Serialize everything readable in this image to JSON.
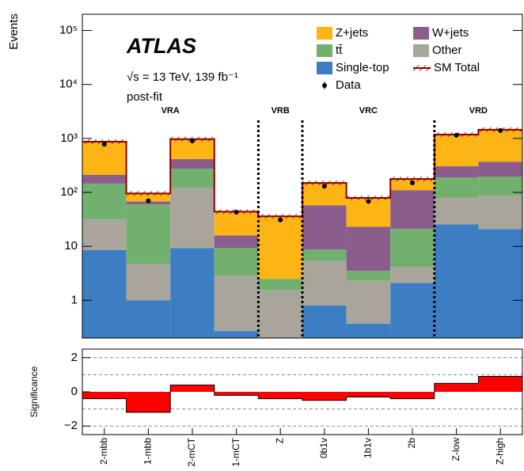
{
  "chart_data": {
    "type": "stacked_histogram",
    "experiment": "ATLAS",
    "energy_label": "√s = 13 TeV, 139 fb⁻¹",
    "fit_label": "post-fit",
    "y_label": "Events",
    "categories": [
      "2-mbb",
      "1-mbb",
      "2-mCT",
      "1-mCT",
      "Z",
      "0b1v",
      "1b1v",
      "2b",
      "Z-low",
      "Z-high"
    ],
    "log_scale": true,
    "ylim": [
      0.2,
      200000
    ],
    "yticks": [
      1,
      10,
      {
        "value": 100,
        "label": "10²"
      },
      {
        "value": 1000,
        "label": "10³"
      },
      {
        "value": 10000,
        "label": "10⁴"
      },
      {
        "value": 100000,
        "label": "10⁵"
      }
    ],
    "series": [
      {
        "name": "Single-top",
        "color": "#3c7dc4",
        "values": [
          8.5,
          1,
          9.3,
          0.27,
          0,
          0.8,
          0.37,
          2.1,
          25.7,
          21
        ]
      },
      {
        "name": "Other",
        "color": "#a9a59a",
        "values": [
          23,
          3.7,
          113,
          2.6,
          1.55,
          4.6,
          1.93,
          2.0,
          53,
          66
        ]
      },
      {
        "name": "tt̄",
        "color": "#72b06e",
        "values": [
          114,
          55,
          153,
          6.4,
          0.95,
          3.3,
          1.2,
          17,
          111,
          109
        ]
      },
      {
        "name": "W+jets",
        "color": "#8a5d8c",
        "values": [
          65,
          8,
          140,
          6.7,
          0,
          49,
          19.5,
          89,
          115,
          174
        ]
      },
      {
        "name": "Z+jets",
        "color": "#fdb515",
        "values": [
          660,
          28,
          555,
          28,
          33.5,
          92,
          56,
          67,
          875,
          1080
        ]
      }
    ],
    "total_name": "SM Total",
    "total_color": "#8b0000",
    "data_name": "Data",
    "data_values": [
      780,
      70,
      900,
      43,
      31,
      130,
      68,
      150,
      1150,
      1400
    ],
    "regions": [
      {
        "label": "VRA",
        "start": 0,
        "end": 3
      },
      {
        "label": "VRB",
        "start": 4,
        "end": 4
      },
      {
        "label": "VRC",
        "start": 5,
        "end": 7
      },
      {
        "label": "VRD",
        "start": 8,
        "end": 9
      }
    ],
    "significance": {
      "y_label": "Significance",
      "color": "#ff0000",
      "values": [
        -0.4,
        -1.2,
        0.4,
        -0.2,
        -0.4,
        -0.5,
        -0.3,
        -0.4,
        0.5,
        0.9
      ],
      "ylim": [
        -2.5,
        2.5
      ],
      "yticks": [
        {
          "value": -2,
          "label": "−2"
        },
        0,
        2
      ],
      "grid_lines": [
        -2,
        -1,
        1,
        2
      ]
    }
  }
}
